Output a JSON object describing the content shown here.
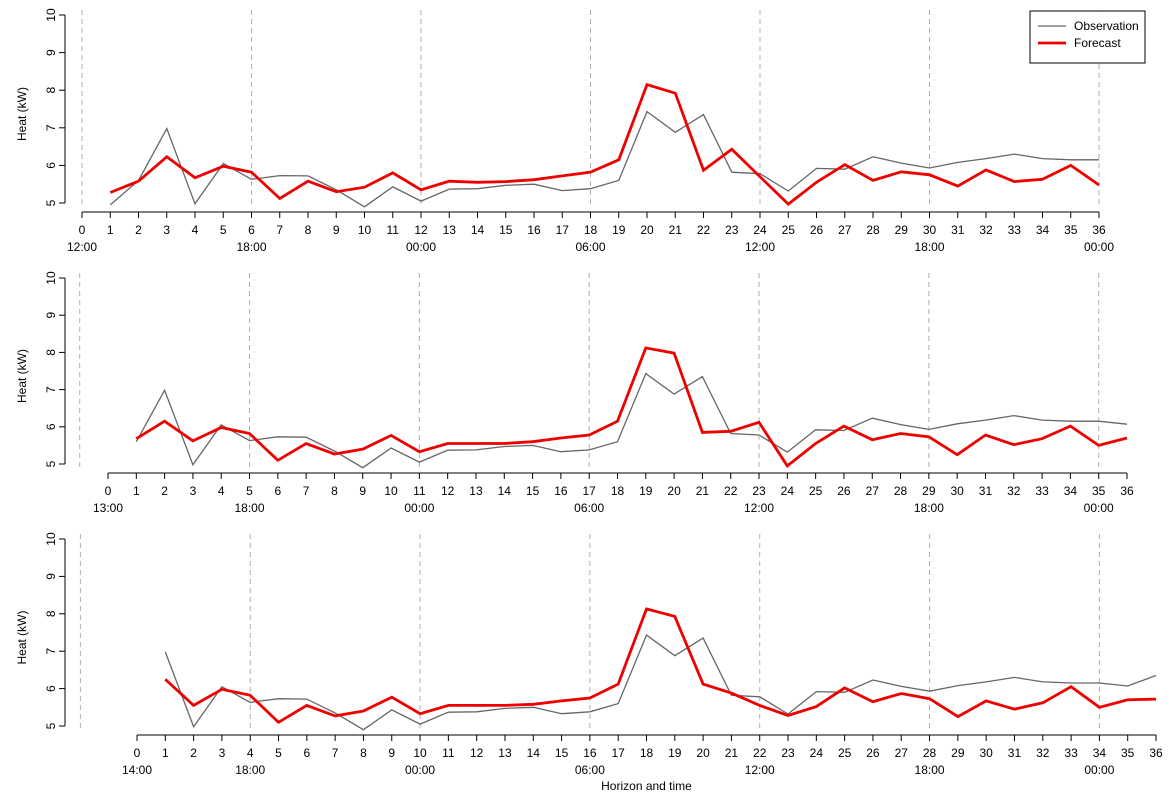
{
  "chart_data": [
    {
      "type": "line",
      "ylabel": "Heat (kW)",
      "ylim": [
        5,
        10
      ],
      "yticks": [
        5,
        6,
        7,
        8,
        9,
        10
      ],
      "horizon_ticks": [
        "0",
        "1",
        "2",
        "3",
        "4",
        "5",
        "6",
        "7",
        "8",
        "9",
        "10",
        "11",
        "12",
        "13",
        "14",
        "15",
        "16",
        "17",
        "18",
        "19",
        "20",
        "21",
        "22",
        "23",
        "24",
        "25",
        "26",
        "27",
        "28",
        "29",
        "30",
        "31",
        "32",
        "33",
        "34",
        "35",
        "36"
      ],
      "time_labels": [
        {
          "h": 0,
          "label": "12:00"
        },
        {
          "h": 6,
          "label": "18:00"
        },
        {
          "h": 12,
          "label": "00:00"
        },
        {
          "h": 18,
          "label": "06:00"
        },
        {
          "h": 24,
          "label": "12:00"
        },
        {
          "h": 30,
          "label": "18:00"
        },
        {
          "h": 36,
          "label": "00:00"
        }
      ],
      "vlines": [
        0,
        6,
        12,
        18,
        24,
        30,
        36
      ],
      "series": [
        {
          "name": "Observation",
          "x_start": 1,
          "values": [
            4.95,
            5.6,
            6.98,
            4.98,
            6.05,
            5.63,
            5.73,
            5.72,
            5.35,
            4.9,
            5.43,
            5.05,
            5.37,
            5.38,
            5.47,
            5.5,
            5.33,
            5.38,
            5.6,
            7.43,
            6.88,
            7.35,
            5.82,
            5.78,
            5.32,
            5.92,
            5.9,
            6.23,
            6.06,
            5.93,
            6.08,
            6.18,
            6.3,
            6.18,
            6.15,
            6.15
          ]
        },
        {
          "name": "Forecast",
          "x_start": 1,
          "values": [
            5.28,
            5.58,
            6.23,
            5.67,
            5.98,
            5.82,
            5.12,
            5.58,
            5.3,
            5.42,
            5.8,
            5.35,
            5.58,
            5.55,
            5.57,
            5.62,
            5.72,
            5.82,
            6.15,
            8.15,
            7.92,
            5.87,
            6.43,
            5.7,
            4.97,
            5.55,
            6.02,
            5.6,
            5.83,
            5.75,
            5.45,
            5.88,
            5.57,
            5.63,
            6.0,
            5.48
          ]
        }
      ]
    },
    {
      "type": "line",
      "ylabel": "Heat (kW)",
      "ylim": [
        5,
        10
      ],
      "yticks": [
        5,
        6,
        7,
        8,
        9,
        10
      ],
      "horizon_ticks": [
        "0",
        "1",
        "2",
        "3",
        "4",
        "5",
        "6",
        "7",
        "8",
        "9",
        "10",
        "11",
        "12",
        "13",
        "14",
        "15",
        "16",
        "17",
        "18",
        "19",
        "20",
        "21",
        "22",
        "23",
        "24",
        "25",
        "26",
        "27",
        "28",
        "29",
        "30",
        "31",
        "32",
        "33",
        "34",
        "35",
        "36"
      ],
      "time_labels": [
        {
          "h": 0,
          "label": "13:00"
        },
        {
          "h": 5,
          "label": "18:00"
        },
        {
          "h": 11,
          "label": "00:00"
        },
        {
          "h": 17,
          "label": "06:00"
        },
        {
          "h": 23,
          "label": "12:00"
        },
        {
          "h": 29,
          "label": "18:00"
        },
        {
          "h": 35,
          "label": "00:00"
        }
      ],
      "vlines": [
        -1,
        5,
        11,
        17,
        23,
        29,
        35
      ],
      "series": [
        {
          "name": "Observation",
          "x_start": 1,
          "values": [
            5.6,
            6.98,
            4.98,
            6.05,
            5.63,
            5.73,
            5.72,
            5.35,
            4.9,
            5.43,
            5.05,
            5.37,
            5.38,
            5.47,
            5.5,
            5.33,
            5.38,
            5.6,
            7.43,
            6.88,
            7.35,
            5.82,
            5.78,
            5.32,
            5.92,
            5.9,
            6.23,
            6.06,
            5.93,
            6.08,
            6.18,
            6.3,
            6.18,
            6.15,
            6.15,
            6.07
          ]
        },
        {
          "name": "Forecast",
          "x_start": 1,
          "values": [
            5.68,
            6.15,
            5.62,
            5.98,
            5.82,
            5.1,
            5.55,
            5.27,
            5.4,
            5.77,
            5.33,
            5.55,
            5.55,
            5.55,
            5.6,
            5.7,
            5.78,
            6.15,
            8.12,
            7.98,
            5.85,
            5.88,
            6.12,
            4.95,
            5.55,
            6.02,
            5.65,
            5.82,
            5.73,
            5.25,
            5.78,
            5.52,
            5.68,
            6.02,
            5.5,
            5.7
          ]
        }
      ]
    },
    {
      "type": "line",
      "xlabel": "Horizon and time",
      "ylabel": "Heat (kW)",
      "ylim": [
        5,
        10
      ],
      "yticks": [
        5,
        6,
        7,
        8,
        9,
        10
      ],
      "horizon_ticks": [
        "0",
        "1",
        "2",
        "3",
        "4",
        "5",
        "6",
        "7",
        "8",
        "9",
        "10",
        "11",
        "12",
        "13",
        "14",
        "15",
        "16",
        "17",
        "18",
        "19",
        "20",
        "21",
        "22",
        "23",
        "24",
        "25",
        "26",
        "27",
        "28",
        "29",
        "30",
        "31",
        "32",
        "33",
        "34",
        "35",
        "36"
      ],
      "time_labels": [
        {
          "h": 0,
          "label": "14:00"
        },
        {
          "h": 4,
          "label": "18:00"
        },
        {
          "h": 10,
          "label": "00:00"
        },
        {
          "h": 16,
          "label": "06:00"
        },
        {
          "h": 22,
          "label": "12:00"
        },
        {
          "h": 28,
          "label": "18:00"
        },
        {
          "h": 34,
          "label": "00:00"
        }
      ],
      "vlines": [
        -2,
        4,
        10,
        16,
        22,
        28,
        34
      ],
      "series": [
        {
          "name": "Observation",
          "x_start": 1,
          "values": [
            6.98,
            4.98,
            6.05,
            5.63,
            5.73,
            5.72,
            5.35,
            4.9,
            5.43,
            5.05,
            5.37,
            5.38,
            5.47,
            5.5,
            5.33,
            5.38,
            5.6,
            7.43,
            6.88,
            7.35,
            5.82,
            5.78,
            5.32,
            5.92,
            5.9,
            6.23,
            6.06,
            5.93,
            6.08,
            6.18,
            6.3,
            6.18,
            6.15,
            6.15,
            6.07,
            6.35
          ]
        },
        {
          "name": "Forecast",
          "x_start": 1,
          "values": [
            6.25,
            5.55,
            5.98,
            5.82,
            5.1,
            5.55,
            5.27,
            5.4,
            5.77,
            5.33,
            5.55,
            5.55,
            5.55,
            5.58,
            5.67,
            5.75,
            6.12,
            8.13,
            7.93,
            6.12,
            5.88,
            5.55,
            5.28,
            5.52,
            6.02,
            5.65,
            5.87,
            5.73,
            5.25,
            5.67,
            5.45,
            5.62,
            6.05,
            5.5,
            5.7,
            5.72
          ]
        }
      ]
    }
  ],
  "legend": {
    "position": "top-right",
    "items": [
      {
        "label": "Observation",
        "color": "#666666"
      },
      {
        "label": "Forecast",
        "color": "#ee0000"
      }
    ]
  },
  "colors": {
    "observation": "#666666",
    "forecast": "#ee0000",
    "vline": "#b0b0b0"
  }
}
